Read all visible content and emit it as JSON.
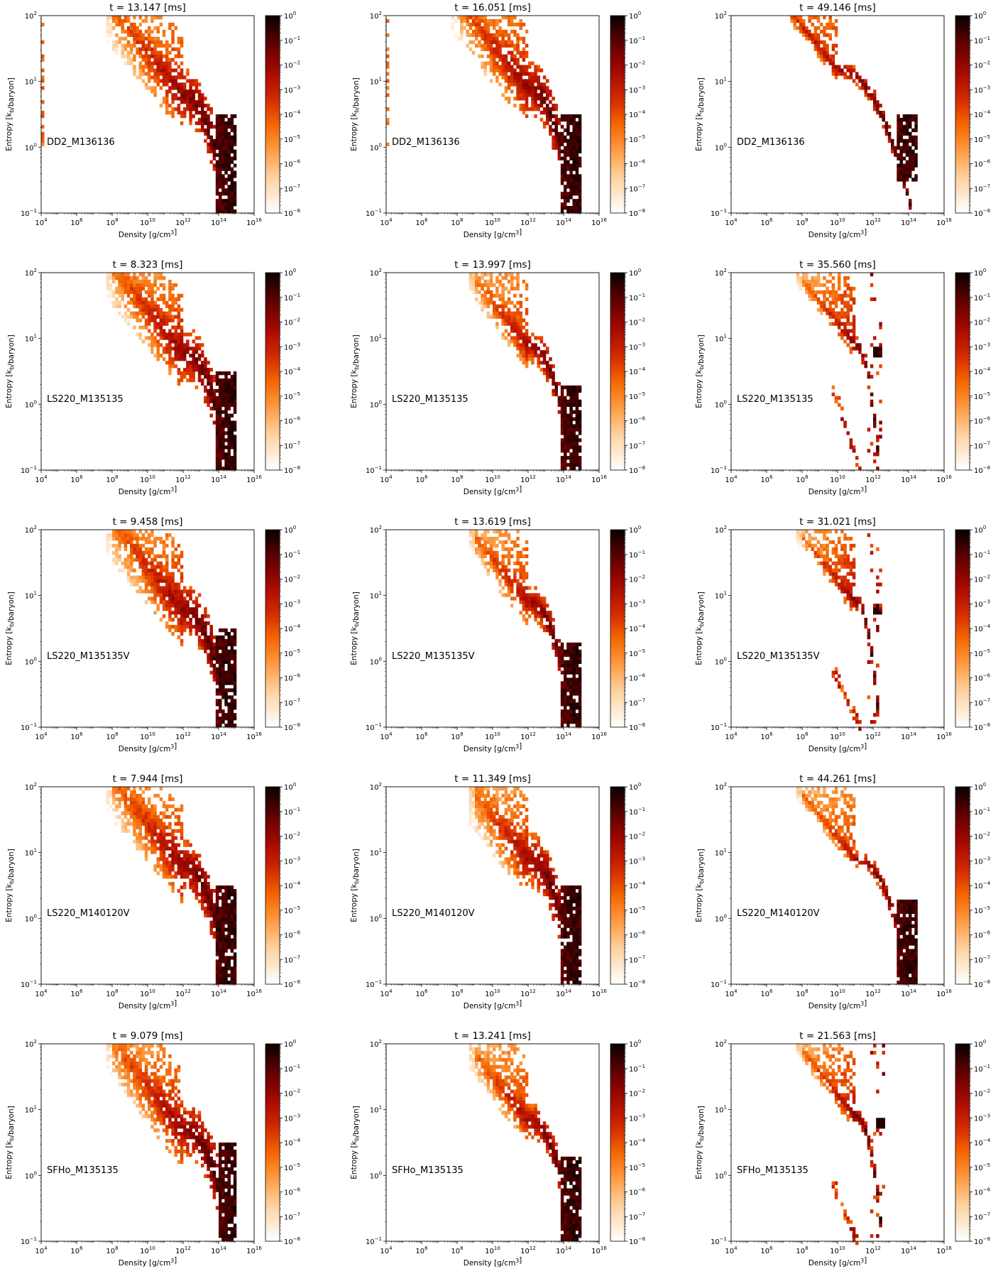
{
  "figure": {
    "xlabel": "Density [g/cm$^3$]",
    "ylabel": "Entropy [k$_b$/baryon]",
    "colorbar_ticks": [
      "10^0",
      "10^-1",
      "10^-2",
      "10^-3",
      "10^-4",
      "10^-5",
      "10^-6",
      "10^-7",
      "10^-8"
    ]
  },
  "chart_data": [
    {
      "type": "heatmap",
      "title": "t = 13.147 [ms]",
      "model": "DD2_M136136",
      "xlabel": "Density [g/cm³]",
      "ylabel": "Entropy [k_b/baryon]",
      "xscale": "log",
      "yscale": "log",
      "xlim": [
        10000.0,
        1e+16
      ],
      "ylim": [
        0.1,
        100
      ],
      "clim": [
        1e-08,
        1
      ],
      "colormap": "gist_heat_r",
      "distribution": {
        "shape": "broad",
        "knee_density": 1000000000000.0,
        "knee_entropy": 6,
        "plateau_start_density": 100000000.0,
        "core_density": 300000000000000.0,
        "core_entropy_range": [
          0.1,
          3
        ],
        "low_density_vertical_band_density": 10000.0
      }
    },
    {
      "type": "heatmap",
      "title": "t = 16.051 [ms]",
      "model": "DD2_M136136",
      "xlabel": "Density [g/cm³]",
      "ylabel": "Entropy [k_b/baryon]",
      "xscale": "log",
      "yscale": "log",
      "xlim": [
        10000.0,
        1e+16
      ],
      "ylim": [
        0.1,
        100
      ],
      "clim": [
        1e-08,
        1
      ],
      "colormap": "gist_heat_r",
      "distribution": {
        "shape": "broad",
        "knee_density": 1000000000000.0,
        "knee_entropy": 8,
        "plateau_start_density": 100000000.0,
        "core_density": 300000000000000.0,
        "core_entropy_range": [
          0.1,
          3
        ],
        "low_density_vertical_band_density": 10000.0
      }
    },
    {
      "type": "heatmap",
      "title": "t = 49.146 [ms]",
      "model": "DD2_M136136",
      "xlabel": "Density [g/cm³]",
      "ylabel": "Entropy [k_b/baryon]",
      "xscale": "log",
      "yscale": "log",
      "xlim": [
        10000.0,
        1e+16
      ],
      "ylim": [
        0.1,
        100
      ],
      "clim": [
        1e-08,
        1
      ],
      "colormap": "gist_heat_r",
      "distribution": {
        "shape": "narrow",
        "knee_density": 10000000000.0,
        "knee_entropy": 15,
        "plateau_start_density": 100000.0,
        "core_density": 100000000000000.0,
        "core_entropy_range": [
          0.3,
          3
        ]
      }
    },
    {
      "type": "heatmap",
      "title": "t = 8.323 [ms]",
      "model": "LS220_M135135",
      "xlabel": "Density [g/cm³]",
      "ylabel": "Entropy [k_b/baryon]",
      "xscale": "log",
      "yscale": "log",
      "xlim": [
        10000.0,
        1e+16
      ],
      "ylim": [
        0.1,
        100
      ],
      "clim": [
        1e-08,
        1
      ],
      "colormap": "gist_heat_r",
      "distribution": {
        "shape": "broad",
        "knee_density": 1000000000000.0,
        "knee_entropy": 6,
        "plateau_start_density": 100000000.0,
        "core_density": 300000000000000.0,
        "core_entropy_range": [
          0.1,
          3
        ]
      }
    },
    {
      "type": "heatmap",
      "title": "t = 13.997 [ms]",
      "model": "LS220_M135135",
      "xlabel": "Density [g/cm³]",
      "ylabel": "Entropy [k_b/baryon]",
      "xscale": "log",
      "yscale": "log",
      "xlim": [
        10000.0,
        1e+16
      ],
      "ylim": [
        0.1,
        100
      ],
      "clim": [
        1e-08,
        1
      ],
      "colormap": "gist_heat_r",
      "distribution": {
        "shape": "medium",
        "knee_density": 1000000000000.0,
        "knee_entropy": 8,
        "plateau_start_density": 1000000000.0,
        "core_density": 300000000000000.0,
        "core_entropy_range": [
          0.1,
          2
        ]
      }
    },
    {
      "type": "heatmap",
      "title": "t = 35.560 [ms]",
      "model": "LS220_M135135",
      "xlabel": "Density [g/cm³]",
      "ylabel": "Entropy [k_b/baryon]",
      "xscale": "log",
      "yscale": "log",
      "xlim": [
        10000.0,
        1e+16
      ],
      "ylim": [
        0.1,
        100
      ],
      "clim": [
        1e-08,
        1
      ],
      "colormap": "gist_heat_r",
      "distribution": {
        "shape": "scattered",
        "knee_density": 100000000000.0,
        "knee_entropy": 8,
        "plateau_start_density": 100000000.0,
        "core_density": 2000000000000.0,
        "core_entropy": 6,
        "low_branch_density_range": [
          5000000000.0,
          1000000000000.0
        ],
        "low_branch_entropy_range": [
          0.1,
          2
        ]
      }
    },
    {
      "type": "heatmap",
      "title": "t = 9.458 [ms]",
      "model": "LS220_M135135V",
      "xlabel": "Density [g/cm³]",
      "ylabel": "Entropy [k_b/baryon]",
      "xscale": "log",
      "yscale": "log",
      "xlim": [
        10000.0,
        1e+16
      ],
      "ylim": [
        0.1,
        100
      ],
      "clim": [
        1e-08,
        1
      ],
      "colormap": "gist_heat_r",
      "distribution": {
        "shape": "broad",
        "knee_density": 1000000000000.0,
        "knee_entropy": 6,
        "plateau_start_density": 100000000.0,
        "core_density": 300000000000000.0,
        "core_entropy_range": [
          0.1,
          3
        ]
      }
    },
    {
      "type": "heatmap",
      "title": "t = 13.619 [ms]",
      "model": "LS220_M135135V",
      "xlabel": "Density [g/cm³]",
      "ylabel": "Entropy [k_b/baryon]",
      "xscale": "log",
      "yscale": "log",
      "xlim": [
        10000.0,
        1e+16
      ],
      "ylim": [
        0.1,
        100
      ],
      "clim": [
        1e-08,
        1
      ],
      "colormap": "gist_heat_r",
      "distribution": {
        "shape": "medium",
        "knee_density": 1000000000000.0,
        "knee_entropy": 8,
        "plateau_start_density": 1000000000.0,
        "core_density": 300000000000000.0,
        "core_entropy_range": [
          0.1,
          2
        ]
      }
    },
    {
      "type": "heatmap",
      "title": "t = 31.021 [ms]",
      "model": "LS220_M135135V",
      "xlabel": "Density [g/cm³]",
      "ylabel": "Entropy [k_b/baryon]",
      "xscale": "log",
      "yscale": "log",
      "xlim": [
        10000.0,
        1e+16
      ],
      "ylim": [
        0.1,
        100
      ],
      "clim": [
        1e-08,
        1
      ],
      "colormap": "gist_heat_r",
      "distribution": {
        "shape": "scattered",
        "knee_density": 100000000000.0,
        "knee_entropy": 8,
        "plateau_start_density": 100000000.0,
        "core_density": 2000000000000.0,
        "core_entropy": 6,
        "low_branch_density_range": [
          5000000000.0,
          1000000000000.0
        ],
        "low_branch_entropy_range": [
          0.1,
          0.8
        ]
      }
    },
    {
      "type": "heatmap",
      "title": "t = 7.944 [ms]",
      "model": "LS220_M140120V",
      "xlabel": "Density [g/cm³]",
      "ylabel": "Entropy [k_b/baryon]",
      "xscale": "log",
      "yscale": "log",
      "xlim": [
        10000.0,
        1e+16
      ],
      "ylim": [
        0.1,
        100
      ],
      "clim": [
        1e-08,
        1
      ],
      "colormap": "gist_heat_r",
      "distribution": {
        "shape": "broad",
        "knee_density": 1000000000000.0,
        "knee_entropy": 6,
        "plateau_start_density": 100000000.0,
        "core_density": 300000000000000.0,
        "core_entropy_range": [
          0.1,
          3
        ]
      }
    },
    {
      "type": "heatmap",
      "title": "t = 11.349 [ms]",
      "model": "LS220_M140120V",
      "xlabel": "Density [g/cm³]",
      "ylabel": "Entropy [k_b/baryon]",
      "xscale": "log",
      "yscale": "log",
      "xlim": [
        10000.0,
        1e+16
      ],
      "ylim": [
        0.1,
        100
      ],
      "clim": [
        1e-08,
        1
      ],
      "colormap": "gist_heat_r",
      "distribution": {
        "shape": "broad",
        "knee_density": 1000000000000.0,
        "knee_entropy": 8,
        "plateau_start_density": 1000000000.0,
        "core_density": 300000000000000.0,
        "core_entropy_range": [
          0.1,
          3
        ]
      }
    },
    {
      "type": "heatmap",
      "title": "t = 44.261 [ms]",
      "model": "LS220_M140120V",
      "xlabel": "Density [g/cm³]",
      "ylabel": "Entropy [k_b/baryon]",
      "xscale": "log",
      "yscale": "log",
      "xlim": [
        10000.0,
        1e+16
      ],
      "ylim": [
        0.1,
        100
      ],
      "clim": [
        1e-08,
        1
      ],
      "colormap": "gist_heat_r",
      "distribution": {
        "shape": "narrow",
        "knee_density": 100000000000.0,
        "knee_entropy": 8,
        "plateau_start_density": 100000000.0,
        "core_density": 100000000000000.0,
        "core_entropy_range": [
          0.1,
          2
        ]
      }
    },
    {
      "type": "heatmap",
      "title": "t = 9.079 [ms]",
      "model": "SFHo_M135135",
      "xlabel": "Density [g/cm³]",
      "ylabel": "Entropy [k_b/baryon]",
      "xscale": "log",
      "yscale": "log",
      "xlim": [
        10000.0,
        1e+16
      ],
      "ylim": [
        0.1,
        100
      ],
      "clim": [
        1e-08,
        1
      ],
      "colormap": "gist_heat_r",
      "distribution": {
        "shape": "broad",
        "knee_density": 1000000000000.0,
        "knee_entropy": 5,
        "plateau_start_density": 100000000.0,
        "core_density": 400000000000000.0,
        "core_entropy_range": [
          0.1,
          3
        ]
      }
    },
    {
      "type": "heatmap",
      "title": "t = 13.241 [ms]",
      "model": "SFHo_M135135",
      "xlabel": "Density [g/cm³]",
      "ylabel": "Entropy [k_b/baryon]",
      "xscale": "log",
      "yscale": "log",
      "xlim": [
        10000.0,
        1e+16
      ],
      "ylim": [
        0.1,
        100
      ],
      "clim": [
        1e-08,
        1
      ],
      "colormap": "gist_heat_r",
      "distribution": {
        "shape": "medium",
        "knee_density": 1000000000000.0,
        "knee_entropy": 7,
        "plateau_start_density": 1000000000.0,
        "core_density": 300000000000000.0,
        "core_entropy_range": [
          0.1,
          2
        ]
      }
    },
    {
      "type": "heatmap",
      "title": "t = 21.563 [ms]",
      "model": "SFHo_M135135",
      "xlabel": "Density [g/cm³]",
      "ylabel": "Entropy [k_b/baryon]",
      "xscale": "log",
      "yscale": "log",
      "xlim": [
        10000.0,
        1e+16
      ],
      "ylim": [
        0.1,
        100
      ],
      "clim": [
        1e-08,
        1
      ],
      "colormap": "gist_heat_r",
      "distribution": {
        "shape": "scattered",
        "knee_density": 100000000000.0,
        "knee_entropy": 8,
        "plateau_start_density": 100000000.0,
        "core_density": 3000000000000.0,
        "core_entropy": 6,
        "low_branch_density_range": [
          5000000000.0,
          500000000000.0
        ],
        "low_branch_entropy_range": [
          0.1,
          0.8
        ]
      }
    }
  ]
}
